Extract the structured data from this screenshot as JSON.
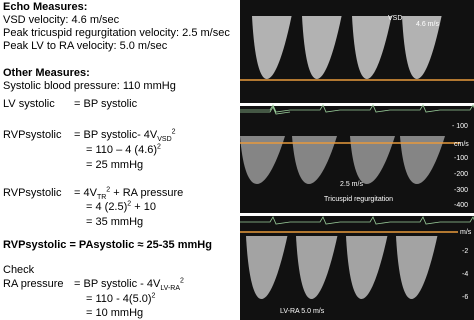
{
  "echo_measures": {
    "heading": "Echo Measures:",
    "items": [
      "VSD velocity: 4.6 m/sec",
      "Peak tricuspid regurgitation velocity: 2.5 m/sec",
      "Peak LV to RA velocity: 5.0 m/sec"
    ]
  },
  "other_measures": {
    "heading": "Other Measures:",
    "items": [
      "Systolic blood pressure: 110 mmHg"
    ]
  },
  "lv": {
    "label": "LV systolic",
    "equation": "= BP systolic"
  },
  "rvp_vsd": {
    "label": "RVPsystolic",
    "line1": "= BP systolic- 4V",
    "line1_sub": "VSD",
    "line1_sup": "2",
    "line2": "= 110 – 4 (4.6)",
    "line2_sup": "2",
    "line3": "= 25 mmHg"
  },
  "rvp_tr": {
    "label": "RVPsystolic",
    "line1": "= 4V",
    "line1_sub": "TR",
    "line1_sup": "2",
    "line1_end": " + RA pressure",
    "line2": "= 4 (2.5)",
    "line2_sup": "2",
    "line2_end": " + 10",
    "line3": "= 35 mmHg"
  },
  "conclusion": "RVPsystolic = PAsystolic ≈ 25-35 mmHg",
  "check": {
    "heading": "Check",
    "label": "RA pressure",
    "line1": "= BP systolic -  4V",
    "line1_sub": "LV-RA",
    "line1_sup": "2",
    "line2": "= 110 -  4(5.0)",
    "line2_sup": "2",
    "line3": "= 10 mmHg"
  },
  "images": {
    "vsd": {
      "label": "VSD",
      "velocity": "4.6 m/s"
    },
    "tr": {
      "unit": "cm/s",
      "scale": [
        "- 100",
        "-100",
        "-200",
        "-300",
        "-400"
      ],
      "velocity": "2.5 m/s",
      "caption": "Tricuspid regurgitation"
    },
    "lvra": {
      "unit": "m/s",
      "scale": [
        "-2",
        "-4",
        "-6"
      ],
      "caption": "LV-RA 5.0 m/s"
    }
  }
}
